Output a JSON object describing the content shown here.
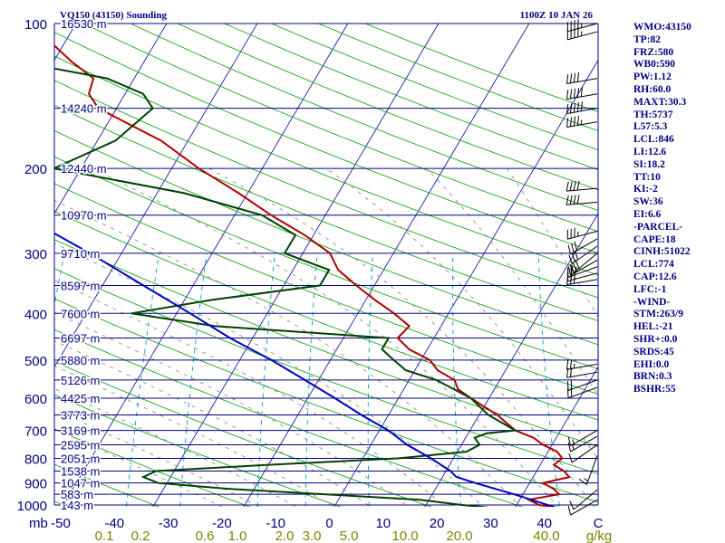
{
  "header": {
    "station": "VQ150 (43150) Sounding",
    "time": "1100Z 10 JAN 26"
  },
  "indices": [
    "WMO:43150",
    "TP:82",
    "FRZ:580",
    "WB0:590",
    "PW:1.12",
    "RH:60.0",
    "MAXT:30.3",
    "TH:5737",
    "L57:5.3",
    "LCL:846",
    "LI:12.6",
    "SI:18.2",
    "TT:10",
    "KI:-2",
    "SW:36",
    "EI:6.6",
    "-PARCEL-",
    "CAPE:18",
    "CINH:51022",
    "LCL:774",
    "CAP:12.6",
    "LFC:-1",
    "-WIND-",
    "STM:263/9",
    "HEL:-21",
    "SHR+:0.0",
    "SRDS:45",
    "EHI:0.0",
    "BRN:0.3",
    "BSHR:55"
  ],
  "colors": {
    "isobar": "#000080",
    "isotherm": "#0000a0",
    "dry_adiabat": "#00a000",
    "mixing_ratio": "#00a0c0",
    "moist_adiabat": "#808080",
    "temperature": "#b00000",
    "dewpoint": "#004000",
    "parcel": "#0000c0",
    "axis_text": "#000080",
    "mixing_text": "#808000"
  },
  "chart_data": {
    "type": "line",
    "title": "VQ150 (43150) Sounding",
    "pressure_axis_label": "mb",
    "pressure_ticks": [
      100,
      200,
      300,
      400,
      500,
      600,
      700,
      800,
      900,
      1000
    ],
    "temperature_ticks": [
      -50,
      -40,
      -30,
      -20,
      -10,
      0,
      10,
      20,
      30,
      40,
      "C"
    ],
    "mixing_ratio_ticks": [
      "0.1",
      "0.2",
      "0.6",
      "1.0",
      "2.0",
      "3.0",
      "5.0",
      "10.0",
      "20.0",
      "40.0"
    ],
    "mixing_ratio_unit": "g/kg",
    "height_labels": [
      {
        "p": 100,
        "label": "16530 m"
      },
      {
        "p": 150,
        "label": "14240 m"
      },
      {
        "p": 200,
        "label": "12440 m"
      },
      {
        "p": 250,
        "label": "10970 m"
      },
      {
        "p": 300,
        "label": "9710 m"
      },
      {
        "p": 350,
        "label": "8597 m"
      },
      {
        "p": 400,
        "label": "7600 m"
      },
      {
        "p": 450,
        "label": "6697 m"
      },
      {
        "p": 500,
        "label": "5880 m"
      },
      {
        "p": 550,
        "label": "5126 m"
      },
      {
        "p": 600,
        "label": "4425 m"
      },
      {
        "p": 650,
        "label": "3773 m"
      },
      {
        "p": 700,
        "label": "3169 m"
      },
      {
        "p": 750,
        "label": "2595 m"
      },
      {
        "p": 800,
        "label": "2051 m"
      },
      {
        "p": 850,
        "label": "1538 m"
      },
      {
        "p": 900,
        "label": "1047 m"
      },
      {
        "p": 950,
        "label": "583 m"
      },
      {
        "p": 1000,
        "label": "143 m"
      }
    ],
    "series": [
      {
        "name": "Temperature",
        "points": [
          [
            1012,
            24.5
          ],
          [
            1000,
            22.5
          ],
          [
            975,
            21
          ],
          [
            950,
            24
          ],
          [
            925,
            23
          ],
          [
            900,
            21.5
          ],
          [
            875,
            24
          ],
          [
            850,
            23
          ],
          [
            825,
            21.5
          ],
          [
            800,
            22
          ],
          [
            775,
            21
          ],
          [
            750,
            19
          ],
          [
            725,
            17.5
          ],
          [
            700,
            15
          ],
          [
            650,
            12
          ],
          [
            600,
            8
          ],
          [
            575,
            6
          ],
          [
            550,
            5
          ],
          [
            525,
            2.5
          ],
          [
            500,
            1
          ],
          [
            475,
            -2
          ],
          [
            450,
            -4
          ],
          [
            425,
            -3.5
          ],
          [
            400,
            -6
          ],
          [
            375,
            -9
          ],
          [
            350,
            -12
          ],
          [
            325,
            -15
          ],
          [
            300,
            -17
          ],
          [
            275,
            -21
          ],
          [
            250,
            -26
          ],
          [
            225,
            -31
          ],
          [
            200,
            -37
          ],
          [
            175,
            -43
          ],
          [
            150,
            -52
          ],
          [
            140,
            -54
          ],
          [
            130,
            -54.5
          ],
          [
            120,
            -58
          ],
          [
            100,
            -65
          ]
        ]
      },
      {
        "name": "Dewpoint",
        "points": [
          [
            1012,
            17
          ],
          [
            1000,
            14
          ],
          [
            975,
            9
          ],
          [
            950,
            -2
          ],
          [
            925,
            -13
          ],
          [
            900,
            -21
          ],
          [
            875,
            -23
          ],
          [
            850,
            -22
          ],
          [
            825,
            -10
          ],
          [
            800,
            4
          ],
          [
            775,
            11
          ],
          [
            750,
            12
          ],
          [
            725,
            11
          ],
          [
            710,
            12
          ],
          [
            700,
            15
          ],
          [
            650,
            11
          ],
          [
            600,
            8
          ],
          [
            550,
            3
          ],
          [
            525,
            -1
          ],
          [
            500,
            -3
          ],
          [
            475,
            -5
          ],
          [
            450,
            -5
          ],
          [
            425,
            -25
          ],
          [
            400,
            -35
          ],
          [
            375,
            -27
          ],
          [
            350,
            -16
          ],
          [
            325,
            -16
          ],
          [
            300,
            -22
          ],
          [
            275,
            -22
          ],
          [
            250,
            -27
          ],
          [
            225,
            -37
          ],
          [
            200,
            -53
          ],
          [
            175,
            -48
          ],
          [
            150,
            -46
          ],
          [
            140,
            -48
          ],
          [
            130,
            -53
          ],
          [
            120,
            -64
          ],
          [
            100,
            -86
          ]
        ]
      },
      {
        "name": "Parcel",
        "points": [
          [
            1012,
            24.5
          ],
          [
            950,
            19
          ],
          [
            900,
            14
          ],
          [
            874,
            11.5
          ],
          [
            850,
            10.5
          ],
          [
            800,
            7.5
          ],
          [
            750,
            4
          ],
          [
            700,
            1
          ],
          [
            650,
            -3
          ],
          [
            600,
            -7
          ],
          [
            550,
            -11.5
          ],
          [
            500,
            -16.5
          ],
          [
            450,
            -22.5
          ],
          [
            400,
            -28.5
          ],
          [
            350,
            -35.5
          ],
          [
            300,
            -43.5
          ],
          [
            250,
            -53.5
          ],
          [
            200,
            -65
          ],
          [
            175,
            -71
          ],
          [
            150,
            -78
          ],
          [
            120,
            -87
          ],
          [
            110,
            -90
          ]
        ]
      }
    ],
    "wind_barbs": [
      {
        "p": 100,
        "dir": 255,
        "spd": 45
      },
      {
        "p": 104,
        "dir": 255,
        "spd": 45
      },
      {
        "p": 130,
        "dir": 260,
        "spd": 40
      },
      {
        "p": 140,
        "dir": 260,
        "spd": 50
      },
      {
        "p": 150,
        "dir": 260,
        "spd": 50
      },
      {
        "p": 160,
        "dir": 260,
        "spd": 45
      },
      {
        "p": 220,
        "dir": 265,
        "spd": 40
      },
      {
        "p": 235,
        "dir": 265,
        "spd": 40
      },
      {
        "p": 270,
        "dir": 255,
        "spd": 35
      },
      {
        "p": 280,
        "dir": 240,
        "spd": 30
      },
      {
        "p": 290,
        "dir": 235,
        "spd": 30
      },
      {
        "p": 300,
        "dir": 230,
        "spd": 30
      },
      {
        "p": 310,
        "dir": 240,
        "spd": 25
      },
      {
        "p": 320,
        "dir": 250,
        "spd": 25
      },
      {
        "p": 330,
        "dir": 255,
        "spd": 25
      },
      {
        "p": 340,
        "dir": 260,
        "spd": 25
      },
      {
        "p": 510,
        "dir": 260,
        "spd": 25
      },
      {
        "p": 530,
        "dir": 260,
        "spd": 20
      },
      {
        "p": 550,
        "dir": 250,
        "spd": 20
      },
      {
        "p": 570,
        "dir": 250,
        "spd": 20
      },
      {
        "p": 700,
        "dir": 240,
        "spd": 15
      },
      {
        "p": 720,
        "dir": 240,
        "spd": 15
      },
      {
        "p": 750,
        "dir": 235,
        "spd": 10
      },
      {
        "p": 790,
        "dir": 200,
        "spd": 15
      },
      {
        "p": 930,
        "dir": 230,
        "spd": 10
      },
      {
        "p": 975,
        "dir": 240,
        "spd": 10
      }
    ]
  }
}
